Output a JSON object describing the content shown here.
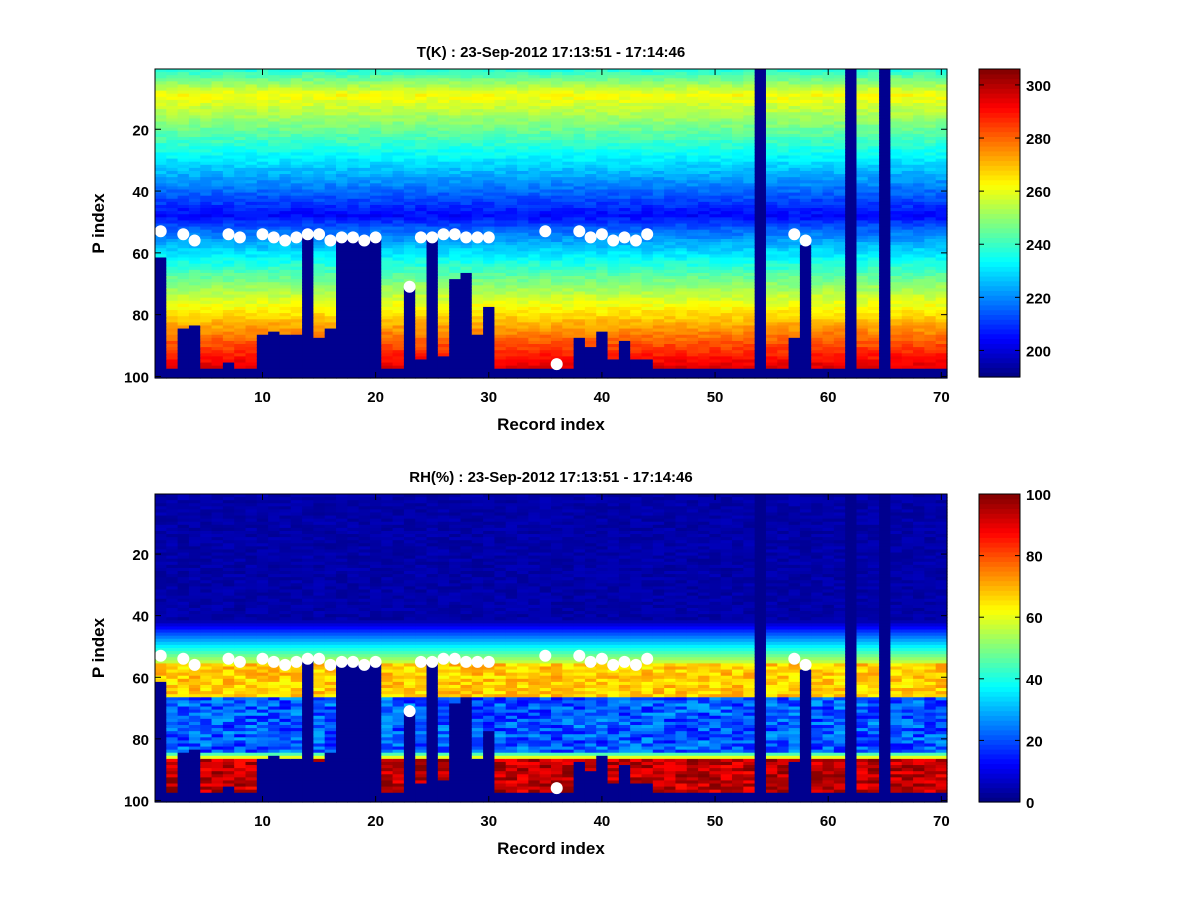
{
  "chart_data": [
    {
      "type": "heatmap",
      "title": "T(K) : 23-Sep-2012 17:13:51 - 17:14:46",
      "xlabel": "Record index",
      "ylabel": "P index",
      "xlim": [
        1,
        70
      ],
      "ylim": [
        1,
        100
      ],
      "y_reversed": true,
      "x_ticks": [
        10,
        20,
        30,
        40,
        50,
        60,
        70
      ],
      "y_ticks": [
        20,
        40,
        60,
        80,
        100
      ],
      "colorbar": {
        "colormap": "jet",
        "range": [
          190,
          306
        ],
        "ticks": [
          200,
          220,
          240,
          260,
          280,
          300
        ]
      },
      "profile": {
        "description": "temperature vs P index",
        "warm_band_p": 9,
        "warm_band_value": 262,
        "min_p": 48,
        "min_value": 205,
        "surface_value": 300
      }
    },
    {
      "type": "heatmap",
      "title": "RH(%) : 23-Sep-2012 17:13:51 - 17:14:46",
      "xlabel": "Record index",
      "ylabel": "P index",
      "xlim": [
        1,
        70
      ],
      "ylim": [
        1,
        100
      ],
      "y_reversed": true,
      "x_ticks": [
        10,
        20,
        30,
        40,
        50,
        60,
        70
      ],
      "y_ticks": [
        20,
        40,
        60,
        80,
        100
      ],
      "colorbar": {
        "colormap": "jet",
        "range": [
          0,
          100
        ],
        "ticks": [
          0,
          20,
          40,
          60,
          80,
          100
        ]
      },
      "profile": {
        "description": "relative humidity vs P index",
        "moist_band_p": [
          56,
          66
        ],
        "moist_band_value": 65,
        "dry_layer_p": [
          70,
          84
        ],
        "dry_layer_value": 12,
        "surface_value": 95
      }
    }
  ],
  "records": {
    "count": 70,
    "full_mask_columns": [
      54,
      62,
      65
    ],
    "bottom_mask_top_p": [
      62,
      98,
      85,
      84,
      98,
      98,
      96,
      98,
      98,
      87,
      86,
      87,
      87,
      55,
      88,
      85,
      56,
      56,
      56,
      56,
      98,
      98,
      71,
      95,
      55,
      94,
      69,
      67,
      87,
      78,
      98,
      98,
      98,
      98,
      98,
      98,
      98,
      88,
      91,
      86,
      95,
      89,
      95,
      95,
      98,
      98,
      98,
      98,
      98,
      98,
      98,
      98,
      98,
      0,
      98,
      98,
      88,
      58,
      98,
      98,
      98,
      0,
      98,
      98,
      0,
      98,
      98,
      98,
      98,
      98
    ],
    "markers": [
      {
        "record": 1,
        "p": 53
      },
      {
        "record": 3,
        "p": 54
      },
      {
        "record": 4,
        "p": 56
      },
      {
        "record": 7,
        "p": 54
      },
      {
        "record": 8,
        "p": 55
      },
      {
        "record": 10,
        "p": 54
      },
      {
        "record": 11,
        "p": 55
      },
      {
        "record": 12,
        "p": 56
      },
      {
        "record": 13,
        "p": 55
      },
      {
        "record": 14,
        "p": 54
      },
      {
        "record": 15,
        "p": 54
      },
      {
        "record": 16,
        "p": 56
      },
      {
        "record": 17,
        "p": 55
      },
      {
        "record": 18,
        "p": 55
      },
      {
        "record": 19,
        "p": 56
      },
      {
        "record": 20,
        "p": 55
      },
      {
        "record": 23,
        "p": 71
      },
      {
        "record": 24,
        "p": 55
      },
      {
        "record": 25,
        "p": 55
      },
      {
        "record": 26,
        "p": 54
      },
      {
        "record": 27,
        "p": 54
      },
      {
        "record": 28,
        "p": 55
      },
      {
        "record": 29,
        "p": 55
      },
      {
        "record": 30,
        "p": 55
      },
      {
        "record": 35,
        "p": 53
      },
      {
        "record": 36,
        "p": 96
      },
      {
        "record": 38,
        "p": 53
      },
      {
        "record": 39,
        "p": 55
      },
      {
        "record": 40,
        "p": 54
      },
      {
        "record": 41,
        "p": 56
      },
      {
        "record": 42,
        "p": 55
      },
      {
        "record": 43,
        "p": 56
      },
      {
        "record": 44,
        "p": 54
      },
      {
        "record": 57,
        "p": 54
      },
      {
        "record": 58,
        "p": 56
      }
    ]
  },
  "labels": {
    "top_title": "T(K) : 23-Sep-2012 17:13:51 - 17:14:46",
    "bottom_title": "RH(%) : 23-Sep-2012 17:13:51 - 17:14:46",
    "xlabel": "Record index",
    "ylabel": "P index"
  },
  "colors": {
    "mask": "#00008f",
    "marker": "#ffffff"
  }
}
